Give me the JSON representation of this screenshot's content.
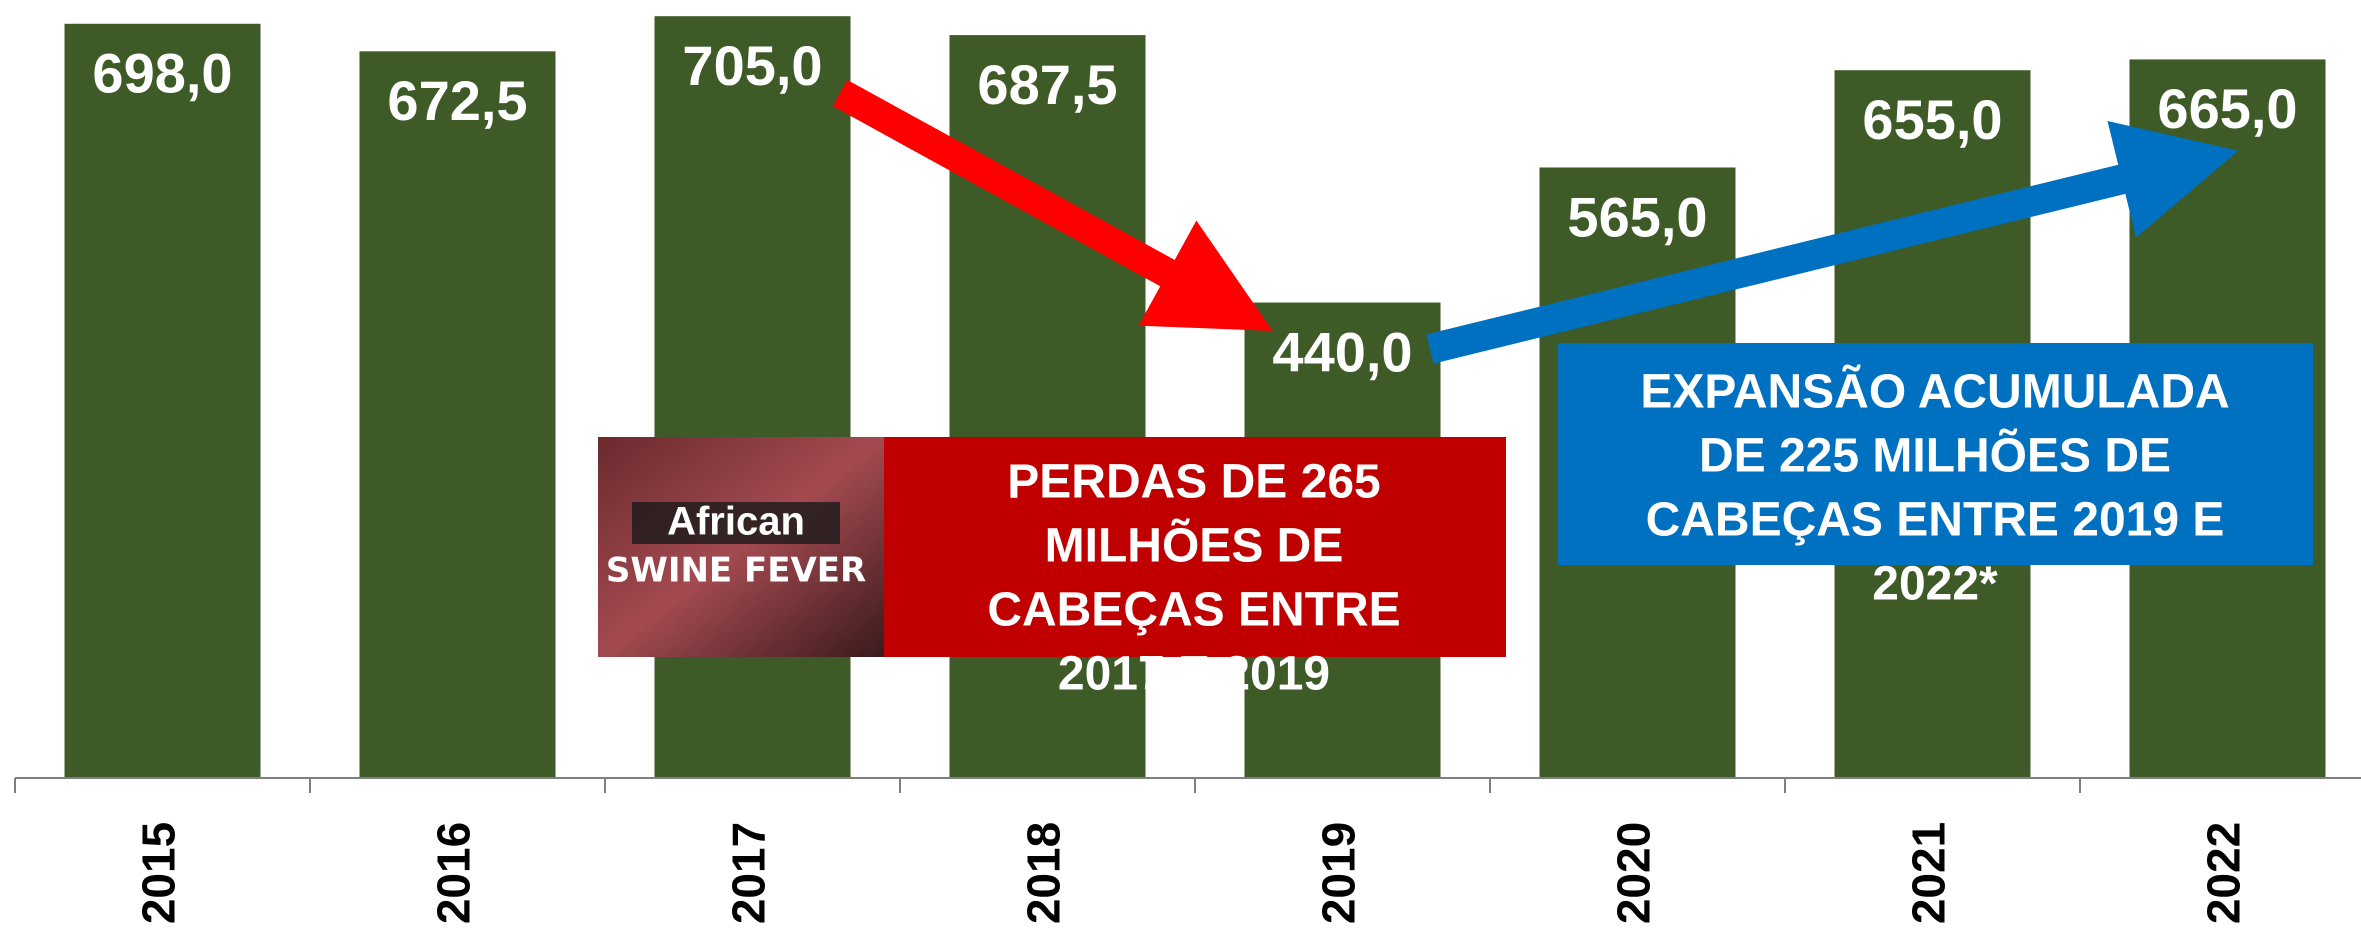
{
  "chart_data": {
    "type": "bar",
    "categories": [
      "2015",
      "2016",
      "2017",
      "2018",
      "2019",
      "2020",
      "2021",
      "2022"
    ],
    "values": [
      698.0,
      672.5,
      705.0,
      687.5,
      440.0,
      565.0,
      655.0,
      665.0
    ],
    "value_labels": [
      "698,0",
      "672,5",
      "705,0",
      "687,5",
      "440,0",
      "565,0",
      "655,0",
      "665,0"
    ],
    "color": "#3d5a27",
    "ylim": [
      0,
      720
    ],
    "annotations": {
      "image_text": [
        "African",
        "SWINE FEVER"
      ],
      "losses": [
        "PERDAS DE 265",
        "MILHÕES DE",
        "CABEÇAS ENTRE",
        "2017 E 2019"
      ],
      "expansion": [
        "EXPANSÃO ACUMULADA",
        "DE 225 MILHÕES DE",
        "CABEÇAS ENTRE 2019 E",
        "2022*"
      ]
    }
  }
}
